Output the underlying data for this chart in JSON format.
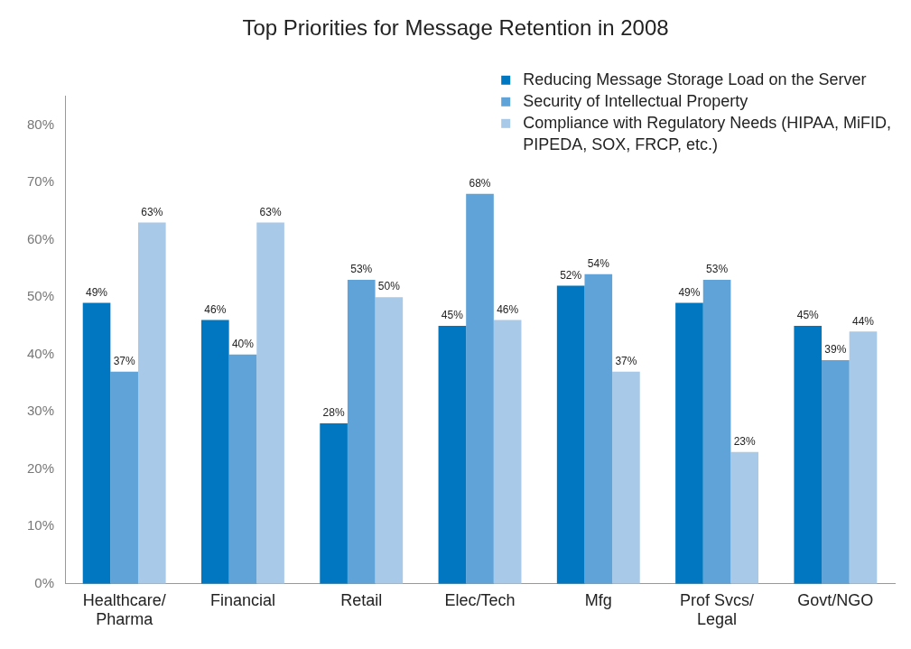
{
  "chart_data": {
    "type": "bar",
    "title": "Top Priorities for Message Retention in 2008",
    "categories": [
      "Healthcare/ Pharma",
      "Financial",
      "Retail",
      "Elec/Tech",
      "Mfg",
      "Prof Svcs/ Legal",
      "Govt/NGO"
    ],
    "series": [
      {
        "name": "Reducing Message Storage Load on the Server",
        "color": "#0077c0",
        "values": [
          49,
          46,
          28,
          45,
          52,
          49,
          45
        ],
        "value_labels": [
          "49%",
          "46%",
          "28%",
          "45%",
          "52%",
          "49%",
          "45%"
        ]
      },
      {
        "name": "Security of Intellectual Property",
        "color": "#5fa3d8",
        "values": [
          37,
          40,
          53,
          68,
          54,
          53,
          39
        ],
        "value_labels": [
          "37%",
          "40%",
          "53%",
          "68%",
          "54%",
          "53%",
          "39%"
        ]
      },
      {
        "name": "Compliance with Regulatory Needs (HIPAA, MiFID, PIPEDA, SOX, FRCP, etc.)",
        "color": "#a9c9e8",
        "values": [
          63,
          63,
          50,
          46,
          37,
          23,
          44
        ],
        "value_labels": [
          "63%",
          "63%",
          "50%",
          "46%",
          "37%",
          "23%",
          "44%"
        ]
      }
    ],
    "ylim": [
      0,
      85
    ],
    "yticks": [
      {
        "value": 0,
        "label": "0%"
      },
      {
        "value": 10,
        "label": "10%"
      },
      {
        "value": 20,
        "label": "20%"
      },
      {
        "value": 30,
        "label": "30%"
      },
      {
        "value": 40,
        "label": "40%"
      },
      {
        "value": 50,
        "label": "50%"
      },
      {
        "value": 60,
        "label": "60%"
      },
      {
        "value": 70,
        "label": "70%"
      },
      {
        "value": 80,
        "label": "80%"
      }
    ],
    "grid": false,
    "legend": "top right"
  }
}
